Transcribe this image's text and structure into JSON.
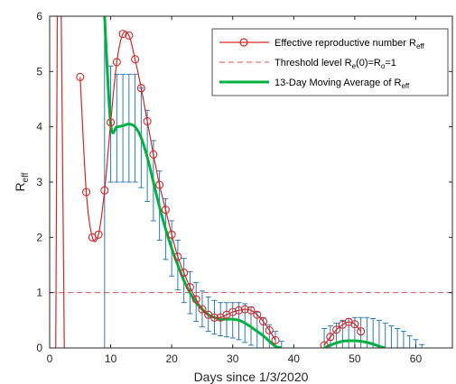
{
  "chart_data": {
    "type": "line",
    "xlabel": "Days since 1/3/2020",
    "ylabel": "R",
    "ylabel_sub": "eff",
    "xlim": [
      0,
      66
    ],
    "ylim": [
      0,
      6
    ],
    "xticks": [
      0,
      10,
      20,
      30,
      40,
      50,
      60
    ],
    "yticks": [
      0,
      1,
      2,
      3,
      4,
      5,
      6
    ],
    "grid": false,
    "legend_position": "top-right",
    "legend": [
      {
        "id": "reff",
        "text": "Effective reproductive number R",
        "sub": "eff",
        "sub2": "",
        "tail": ""
      },
      {
        "id": "threshold",
        "text": "Threshold level R",
        "sub": "e",
        "mid": "(0)=R",
        "sub2": "o",
        "tail": "=1"
      },
      {
        "id": "avg",
        "text": "13-Day Moving Average of R",
        "sub": "eff",
        "sub2": "",
        "tail": ""
      }
    ],
    "colors": {
      "reff": "#d62728",
      "threshold": "#e05050",
      "avg": "#00b140",
      "errorbars": "#2b7bb9"
    },
    "series": [
      {
        "id": "reff",
        "name": "Effective reproductive number Reff",
        "x": [
          5,
          6,
          7,
          8,
          9,
          10,
          11,
          12,
          13,
          14,
          15,
          16,
          17,
          18,
          19,
          20,
          21,
          22,
          23,
          24,
          25,
          26,
          27,
          28,
          29,
          30,
          31,
          32,
          33,
          34,
          35,
          36,
          37,
          45,
          46,
          47,
          48,
          49,
          50,
          51
        ],
        "y": [
          4.9,
          2.82,
          2.0,
          2.05,
          2.85,
          4.08,
          5.17,
          5.68,
          5.65,
          5.22,
          4.7,
          4.1,
          3.5,
          2.95,
          2.5,
          2.05,
          1.65,
          1.36,
          1.1,
          0.88,
          0.7,
          0.6,
          0.55,
          0.55,
          0.6,
          0.65,
          0.68,
          0.7,
          0.68,
          0.6,
          0.48,
          0.32,
          0.14,
          0.05,
          0.2,
          0.33,
          0.42,
          0.47,
          0.43,
          0.3
        ]
      },
      {
        "id": "avg",
        "name": "13-Day Moving Average of Reff",
        "x": [
          9,
          10,
          11,
          12,
          13,
          14,
          15,
          16,
          17,
          18,
          19,
          20,
          21,
          22,
          23,
          24,
          25,
          26,
          27,
          28,
          29,
          30,
          31,
          32,
          33,
          34,
          35,
          36,
          37,
          38,
          45,
          46,
          47,
          48,
          49,
          50,
          51,
          52,
          53,
          54,
          55
        ],
        "y": [
          6.0,
          4.05,
          4.0,
          4.02,
          4.05,
          4.0,
          3.8,
          3.45,
          3.0,
          2.55,
          2.15,
          1.8,
          1.5,
          1.22,
          1.0,
          0.82,
          0.7,
          0.6,
          0.55,
          0.52,
          0.52,
          0.52,
          0.5,
          0.45,
          0.38,
          0.3,
          0.22,
          0.12,
          0.03,
          0.0,
          0.0,
          0.05,
          0.09,
          0.12,
          0.13,
          0.13,
          0.12,
          0.1,
          0.07,
          0.03,
          0.0
        ]
      }
    ],
    "threshold": 1,
    "errorbars": {
      "x": [
        9,
        10,
        11,
        12,
        13,
        14,
        15,
        16,
        17,
        18,
        19,
        20,
        21,
        22,
        23,
        24,
        25,
        26,
        27,
        28,
        29,
        30,
        31,
        32,
        33,
        34,
        35,
        36,
        37,
        38,
        45,
        46,
        47,
        48,
        49,
        50,
        51,
        52,
        53,
        54,
        55,
        56,
        57,
        58,
        59,
        60,
        61
      ],
      "low": [
        0.0,
        3.0,
        3.0,
        3.0,
        3.0,
        3.0,
        2.9,
        2.65,
        2.3,
        1.95,
        1.6,
        1.3,
        1.05,
        0.82,
        0.62,
        0.48,
        0.38,
        0.3,
        0.25,
        0.22,
        0.2,
        0.18,
        0.15,
        0.1,
        0.05,
        0.0,
        0.0,
        0.0,
        0.0,
        0.0,
        0.0,
        0.0,
        0.0,
        0.0,
        0.0,
        0.0,
        0.0,
        0.0,
        0.0,
        0.0,
        0.0,
        0.0,
        0.0,
        0.0,
        0.0,
        0.0,
        0.0
      ],
      "high": [
        6.0,
        5.1,
        4.95,
        4.95,
        4.95,
        4.95,
        4.7,
        4.3,
        3.75,
        3.2,
        2.7,
        2.3,
        1.95,
        1.62,
        1.38,
        1.18,
        1.03,
        0.92,
        0.86,
        0.82,
        0.82,
        0.82,
        0.82,
        0.8,
        0.74,
        0.65,
        0.55,
        0.42,
        0.3,
        0.12,
        0.35,
        0.4,
        0.45,
        0.5,
        0.53,
        0.55,
        0.55,
        0.55,
        0.53,
        0.5,
        0.45,
        0.4,
        0.35,
        0.3,
        0.22,
        0.15,
        0.06
      ]
    },
    "spike": {
      "x": [
        1,
        1.25,
        1.9,
        2.4
      ],
      "y": [
        0,
        6,
        6,
        0
      ]
    }
  }
}
